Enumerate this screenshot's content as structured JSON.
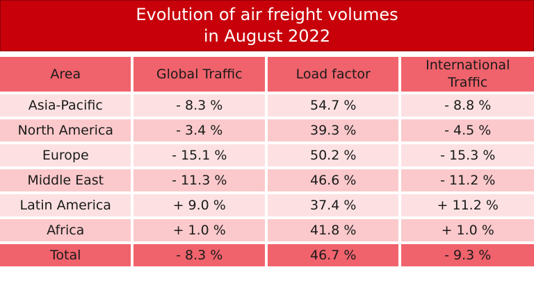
{
  "title": {
    "line1": "Evolution of air freight volumes",
    "line2": "in August 2022"
  },
  "columns": {
    "area": "Area",
    "global_traffic": "Global Traffic",
    "load_factor": "Load factor",
    "international_traffic_line1": "International",
    "international_traffic_line2": "Traffic"
  },
  "rows": [
    {
      "area": "Asia-Pacific",
      "global": "- 8.3 %",
      "load": "54.7 %",
      "intl": "- 8.8 %"
    },
    {
      "area": "North America",
      "global": "- 3.4 %",
      "load": "39.3 %",
      "intl": "- 4.5 %"
    },
    {
      "area": "Europe",
      "global": "- 15.1 %",
      "load": "50.2 %",
      "intl": "- 15.3 %"
    },
    {
      "area": "Middle East",
      "global": "- 11.3 %",
      "load": "46.6 %",
      "intl": "- 11.2 %"
    },
    {
      "area": "Latin America",
      "global": "+ 9.0 %",
      "load": "37.4 %",
      "intl": "+ 11.2 %"
    },
    {
      "area": "Africa",
      "global": "+ 1.0 %",
      "load": "41.8 %",
      "intl": "+ 1.0 %"
    }
  ],
  "total": {
    "area": "Total",
    "global": "- 8.3 %",
    "load": "46.7 %",
    "intl": "- 9.3 %"
  },
  "colors": {
    "title_bg": "#c8000a",
    "header_bg": "#f0636c",
    "row_light": "#fde1e2",
    "row_dark": "#fbc9cb"
  }
}
